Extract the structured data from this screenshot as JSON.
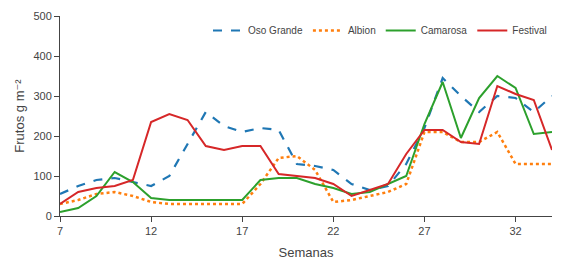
{
  "chart_data": {
    "type": "line",
    "x": [
      7,
      8,
      9,
      10,
      11,
      12,
      13,
      14,
      15,
      16,
      17,
      18,
      19,
      20,
      21,
      22,
      23,
      24,
      25,
      26,
      27,
      28,
      29,
      30,
      31,
      32,
      33,
      34
    ],
    "series": [
      {
        "name": "Oso Grande",
        "line_style": "dashed",
        "values": [
          55,
          75,
          90,
          95,
          85,
          75,
          100,
          180,
          260,
          225,
          210,
          220,
          215,
          130,
          125,
          115,
          80,
          65,
          75,
          130,
          220,
          345,
          300,
          260,
          300,
          295,
          260,
          300
        ]
      },
      {
        "name": "Albion",
        "line_style": "dotted",
        "values": [
          30,
          40,
          55,
          60,
          50,
          35,
          30,
          30,
          30,
          30,
          30,
          80,
          145,
          150,
          115,
          35,
          40,
          50,
          60,
          80,
          210,
          210,
          185,
          185,
          210,
          130,
          130,
          130
        ]
      },
      {
        "name": "Camarosa",
        "line_style": "solid",
        "values": [
          10,
          20,
          50,
          110,
          85,
          45,
          40,
          40,
          40,
          40,
          40,
          90,
          95,
          95,
          80,
          70,
          55,
          60,
          80,
          100,
          230,
          335,
          195,
          295,
          350,
          320,
          205,
          210
        ]
      },
      {
        "name": "Festival",
        "line_style": "solid",
        "values": [
          30,
          60,
          70,
          75,
          90,
          235,
          255,
          240,
          175,
          165,
          175,
          175,
          105,
          100,
          95,
          80,
          50,
          65,
          80,
          155,
          215,
          215,
          185,
          180,
          325,
          305,
          290,
          165
        ]
      }
    ],
    "xlabel": "Semanas",
    "ylabel": "Frutos g m⁻²",
    "xlim": [
      7,
      34
    ],
    "xticks": [
      7,
      12,
      17,
      22,
      27,
      32
    ],
    "ylim": [
      0,
      500
    ],
    "yticks": [
      0,
      100,
      200,
      300,
      400,
      500
    ],
    "grid": false,
    "legend": "upper right"
  }
}
